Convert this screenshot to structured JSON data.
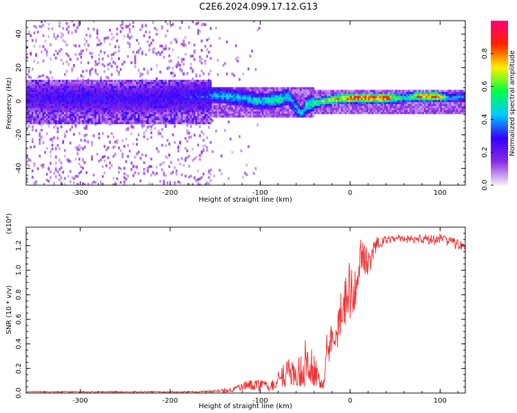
{
  "figure_title": "C2E6.2024.099.17.12.G13",
  "chart_data": [
    {
      "type": "heatmap",
      "title": "C2E6.2024.099.17.12.G13",
      "xlabel": "Height of straight line (km)",
      "ylabel": "Frequency (Hz)",
      "xlim": [
        -360,
        128
      ],
      "ylim": [
        -50,
        48
      ],
      "x_ticks": [
        -300,
        -200,
        -100,
        0,
        100
      ],
      "x_tick_labels": [
        "-300",
        "-200",
        "-100",
        "0",
        "100"
      ],
      "y_ticks": [
        -40,
        -20,
        0,
        20,
        40
      ],
      "y_tick_labels": [
        "-40",
        "-20",
        "0",
        "20",
        "40"
      ],
      "colorbar": {
        "label": "Normalized spectral amplitude",
        "range": [
          0,
          1
        ],
        "ticks": [
          0.0,
          0.2,
          0.4,
          0.6,
          0.8
        ],
        "tick_labels": [
          "0.0",
          "0.2",
          "0.4",
          "0.6",
          "0.8"
        ],
        "colors": [
          "#f4eef9",
          "#8a2be2",
          "#3300ff",
          "#00ccff",
          "#00ff44",
          "#ffee00",
          "#ff2200",
          "#ff0077"
        ]
      },
      "ridge": [
        {
          "x": -360,
          "f": 2,
          "amp": 0.25
        },
        {
          "x": -300,
          "f": 2,
          "amp": 0.3
        },
        {
          "x": -250,
          "f": 1,
          "amp": 0.28
        },
        {
          "x": -200,
          "f": 2,
          "amp": 0.3
        },
        {
          "x": -160,
          "f": 3,
          "amp": 0.35
        },
        {
          "x": -150,
          "f": 4,
          "amp": 0.45
        },
        {
          "x": -120,
          "f": 2,
          "amp": 0.5
        },
        {
          "x": -100,
          "f": 0,
          "amp": 0.5
        },
        {
          "x": -80,
          "f": 1,
          "amp": 0.55
        },
        {
          "x": -70,
          "f": 3,
          "amp": 0.5
        },
        {
          "x": -55,
          "f": -8,
          "amp": 0.45
        },
        {
          "x": -50,
          "f": -2,
          "amp": 0.55
        },
        {
          "x": -30,
          "f": 0,
          "amp": 0.7
        },
        {
          "x": -10,
          "f": 2,
          "amp": 0.85
        },
        {
          "x": 0,
          "f": 2,
          "amp": 0.95
        },
        {
          "x": 40,
          "f": 2,
          "amp": 0.95
        },
        {
          "x": 60,
          "f": 2,
          "amp": 0.5
        },
        {
          "x": 75,
          "f": 3,
          "amp": 0.85
        },
        {
          "x": 95,
          "f": 3,
          "amp": 0.9
        },
        {
          "x": 110,
          "f": 2,
          "amp": 0.45
        },
        {
          "x": 128,
          "f": 3,
          "amp": 0.4
        }
      ]
    },
    {
      "type": "line",
      "xlabel": "Height of straight line (km)",
      "ylabel": "SNR (10 * v/v)",
      "y_multiplier": "(x10⁴)",
      "xlim": [
        -360,
        128
      ],
      "ylim": [
        0,
        1.35
      ],
      "x_ticks": [
        -300,
        -200,
        -100,
        0,
        100
      ],
      "x_tick_labels": [
        "-300",
        "-200",
        "-100",
        "0",
        "100"
      ],
      "y_ticks": [
        0.0,
        0.2,
        0.4,
        0.6,
        0.8,
        1.0,
        1.2
      ],
      "y_tick_labels": [
        "0.0",
        "0.2",
        "0.4",
        "0.6",
        "0.8",
        "1.0",
        "1.2"
      ],
      "series": [
        {
          "name": "SNR",
          "color": "#ee3333",
          "envelope": [
            {
              "x": -360,
              "y": 0.01,
              "noise": 0.005
            },
            {
              "x": -200,
              "y": 0.01,
              "noise": 0.005
            },
            {
              "x": -170,
              "y": 0.01,
              "noise": 0.006
            },
            {
              "x": -150,
              "y": 0.015,
              "noise": 0.01
            },
            {
              "x": -130,
              "y": 0.03,
              "noise": 0.02
            },
            {
              "x": -115,
              "y": 0.06,
              "noise": 0.04
            },
            {
              "x": -100,
              "y": 0.06,
              "noise": 0.05
            },
            {
              "x": -90,
              "y": 0.05,
              "noise": 0.04
            },
            {
              "x": -80,
              "y": 0.1,
              "noise": 0.08
            },
            {
              "x": -70,
              "y": 0.15,
              "noise": 0.12
            },
            {
              "x": -55,
              "y": 0.2,
              "noise": 0.15
            },
            {
              "x": -40,
              "y": 0.2,
              "noise": 0.16
            },
            {
              "x": -30,
              "y": 0.05,
              "noise": 0.05
            },
            {
              "x": -25,
              "y": 0.3,
              "noise": 0.15
            },
            {
              "x": -15,
              "y": 0.55,
              "noise": 0.2
            },
            {
              "x": -5,
              "y": 0.75,
              "noise": 0.2
            },
            {
              "x": 5,
              "y": 0.85,
              "noise": 0.2
            },
            {
              "x": 12,
              "y": 1.15,
              "noise": 0.15
            },
            {
              "x": 20,
              "y": 1.05,
              "noise": 0.12
            },
            {
              "x": 30,
              "y": 1.22,
              "noise": 0.05
            },
            {
              "x": 50,
              "y": 1.26,
              "noise": 0.03
            },
            {
              "x": 80,
              "y": 1.25,
              "noise": 0.04
            },
            {
              "x": 100,
              "y": 1.25,
              "noise": 0.05
            },
            {
              "x": 115,
              "y": 1.22,
              "noise": 0.05
            },
            {
              "x": 128,
              "y": 1.19,
              "noise": 0.03
            }
          ]
        }
      ]
    }
  ]
}
